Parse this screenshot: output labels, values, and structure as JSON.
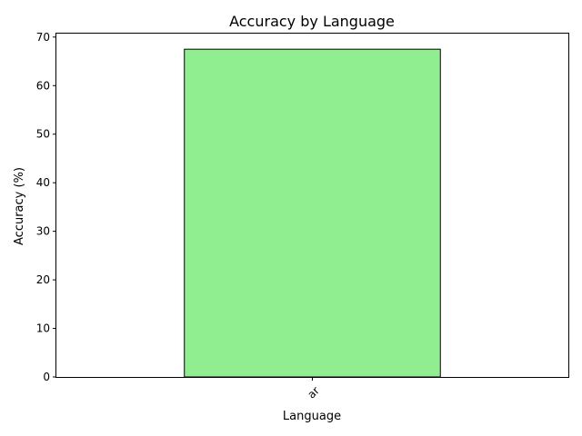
{
  "chart_data": {
    "type": "bar",
    "title": "Accuracy by Language",
    "xlabel": "Language",
    "ylabel": "Accuracy (%)",
    "categories": [
      "ar"
    ],
    "values": [
      67.5
    ],
    "ylim": [
      0,
      70.9
    ],
    "yticks": [
      0,
      10,
      20,
      30,
      40,
      50,
      60,
      70
    ],
    "bar_color": "#90EE90",
    "bar_edge_color": "#000000",
    "grid": false,
    "x_tick_rotation": 45
  }
}
